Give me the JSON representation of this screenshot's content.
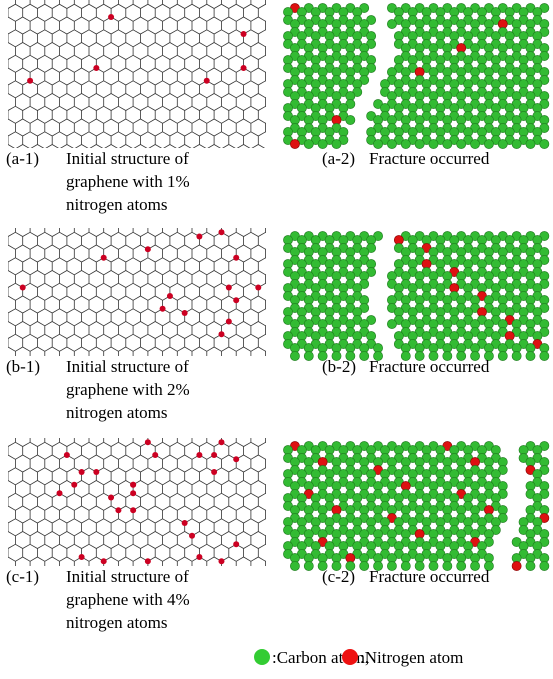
{
  "panels": [
    {
      "label": "(a-1)",
      "caption": [
        "Initial structure of",
        "graphene with 1%",
        "nitrogen atoms"
      ]
    },
    {
      "label": "(a-2)",
      "caption": [
        "Fracture occurred"
      ]
    },
    {
      "label": "(b-1)",
      "caption": [
        "Initial structure of",
        "graphene with 2%",
        "nitrogen atoms"
      ]
    },
    {
      "label": "(b-2)",
      "caption": [
        "Fracture occurred"
      ]
    },
    {
      "label": "(c-1)",
      "caption": [
        "Initial structure of",
        "graphene with 4%",
        "nitrogen atoms"
      ]
    },
    {
      "label": "(c-2)",
      "caption": [
        "Fracture occurred"
      ]
    }
  ],
  "legend": [
    {
      "label": ":Carbon atom,"
    },
    {
      "label": ":Nitrogen atom"
    }
  ]
}
